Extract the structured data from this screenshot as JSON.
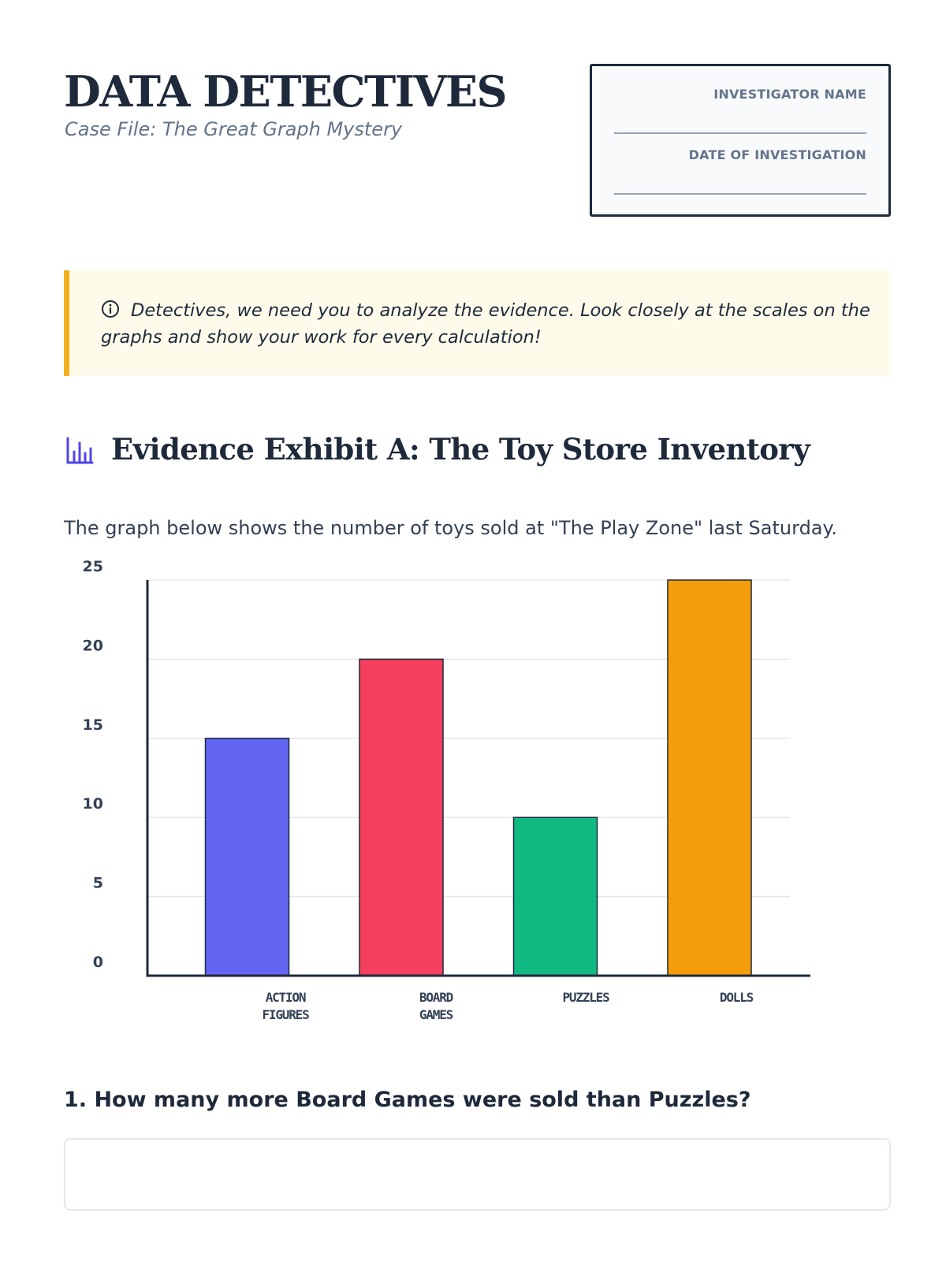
{
  "header": {
    "title": "DATA DETECTIVES",
    "subtitle": "Case File: The Great Graph Mystery"
  },
  "investigator_box": {
    "name_label": "INVESTIGATOR NAME",
    "date_label": "DATE OF INVESTIGATION"
  },
  "callout": {
    "icon": "info-icon",
    "text": "Detectives, we need you to analyze the evidence. Look closely at the scales on the graphs and show your work for every calculation!",
    "accent_color": "#f2b01e",
    "background_color": "#fefbeb"
  },
  "section": {
    "icon": "bar-chart-icon",
    "icon_color": "#4f46e5",
    "title": "Evidence Exhibit A: The Toy Store Inventory",
    "description": "The graph below shows the number of toys sold at \"The Play Zone\" last Saturday."
  },
  "chart_data": {
    "type": "bar",
    "categories": [
      [
        "ACTION",
        "FIGURES"
      ],
      [
        "BOARD",
        "GAMES"
      ],
      [
        "PUZZLES"
      ],
      [
        "DOLLS"
      ]
    ],
    "values": [
      15,
      20,
      10,
      25
    ],
    "colors": [
      "#6366f1",
      "#f43f5e",
      "#10b981",
      "#f59e0b"
    ],
    "y_ticks": [
      0,
      5,
      10,
      15,
      20,
      25
    ],
    "ylim": [
      0,
      25
    ],
    "grid": true,
    "title": "",
    "xlabel": "",
    "ylabel": ""
  },
  "questions": [
    {
      "text": "1. How many more Board Games were sold than Puzzles?",
      "answer": ""
    }
  ]
}
